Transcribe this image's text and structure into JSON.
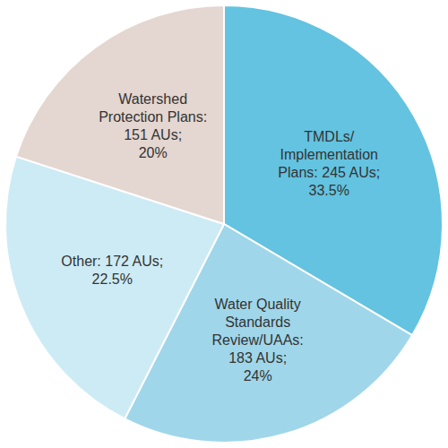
{
  "chart_data": {
    "type": "pie",
    "categories": [
      "TMDLs/ Implementation Plans:",
      "Water Quality Standards Review/UAAs:",
      "Other:",
      "Watershed Protection Plans:"
    ],
    "values": [
      33.5,
      24,
      22.5,
      20
    ],
    "value_labels": [
      "33.5%",
      "24%",
      "22.5%",
      "20%"
    ],
    "counts": [
      245,
      183,
      172,
      151
    ],
    "count_labels": [
      "245 AUs;",
      "183 AUs;",
      "172 AUs;",
      "151 AUs;"
    ],
    "colors": [
      "#63c3e0",
      "#a0d6ea",
      "#cdebf5",
      "#e4d6d0"
    ],
    "data_labels": true
  }
}
